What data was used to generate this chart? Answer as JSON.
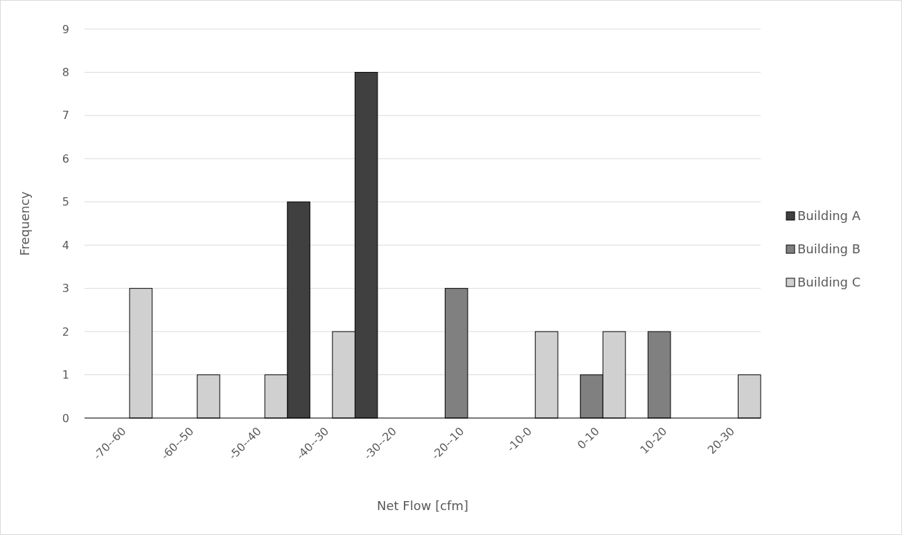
{
  "chart_data": {
    "type": "bar",
    "xlabel": "Net Flow [cfm]",
    "ylabel": "Frequency",
    "categories": [
      "-70--60",
      "-60--50",
      "-50--40",
      "-40--30",
      "-30--20",
      "-20--10",
      "-10-0",
      "0-10",
      "10-20",
      "20-30"
    ],
    "series": [
      {
        "name": "Building A",
        "color": "#404040",
        "values": [
          0,
          0,
          0,
          5,
          8,
          0,
          0,
          0,
          0,
          0
        ]
      },
      {
        "name": "Building B",
        "color": "#808080",
        "values": [
          0,
          0,
          0,
          0,
          0,
          3,
          0,
          1,
          2,
          0
        ]
      },
      {
        "name": "Building C",
        "color": "#d0d0d0",
        "values": [
          3,
          1,
          1,
          2,
          0,
          0,
          2,
          2,
          0,
          1
        ]
      }
    ],
    "ylim": [
      0,
      9
    ],
    "yticks": [
      0,
      1,
      2,
      3,
      4,
      5,
      6,
      7,
      8,
      9
    ],
    "grid": "y",
    "legend": "right"
  }
}
